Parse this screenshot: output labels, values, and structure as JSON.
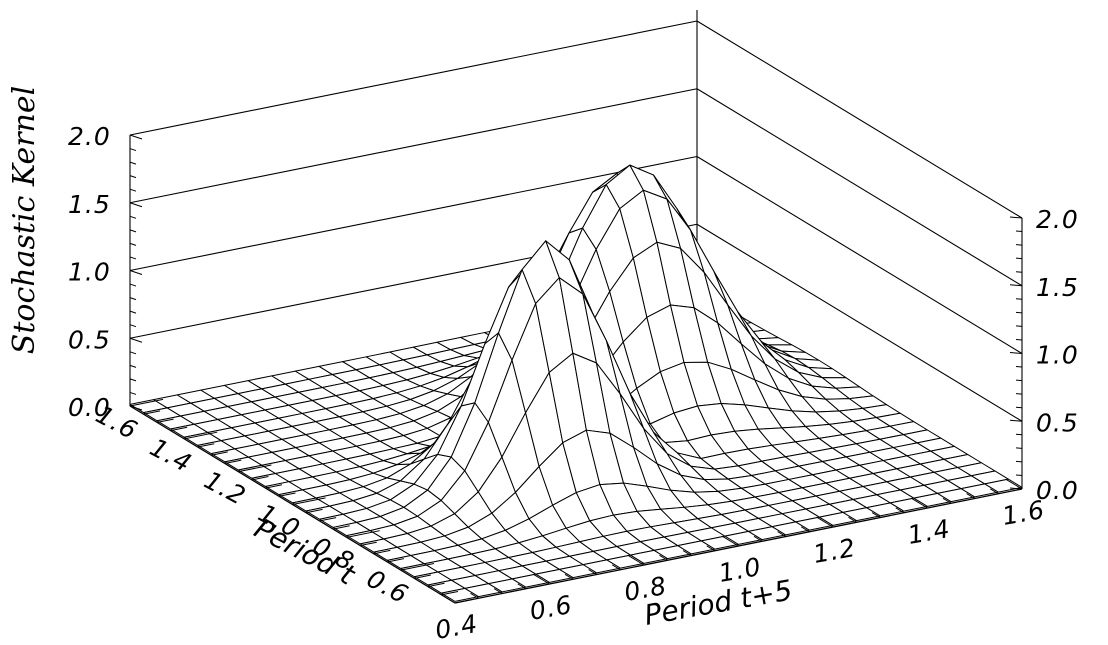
{
  "chart_data": {
    "type": "surface",
    "title": "",
    "x_axis": {
      "label": "Period t+5",
      "range": [
        0.4,
        1.6
      ],
      "ticks": [
        0.4,
        0.6,
        0.8,
        1.0,
        1.2,
        1.4,
        1.6
      ],
      "tick_labels": [
        "0.4",
        "0.6",
        "0.8",
        "1.0",
        "1.2",
        "1.4",
        "1.6"
      ]
    },
    "y_axis": {
      "label": "Period t",
      "range": [
        0.4,
        1.6
      ],
      "ticks": [
        0.6,
        0.8,
        1.0,
        1.2,
        1.4,
        1.6
      ],
      "tick_labels": [
        "0.6",
        "0.8",
        "1.0",
        "1.2",
        "1.4",
        "1.6"
      ]
    },
    "z_axis": {
      "label": "Stochastic Kernel",
      "range": [
        0.0,
        2.0
      ],
      "ticks": [
        0.0,
        0.5,
        1.0,
        1.5,
        2.0
      ],
      "tick_labels": [
        "0.0",
        "0.5",
        "1.0",
        "1.5",
        "2.0"
      ]
    },
    "peaks": [
      {
        "x": 0.85,
        "y": 0.85,
        "z": 1.8
      },
      {
        "x": 1.2,
        "y": 1.15,
        "z": 1.75
      }
    ],
    "grid": true,
    "wireframe": true
  }
}
